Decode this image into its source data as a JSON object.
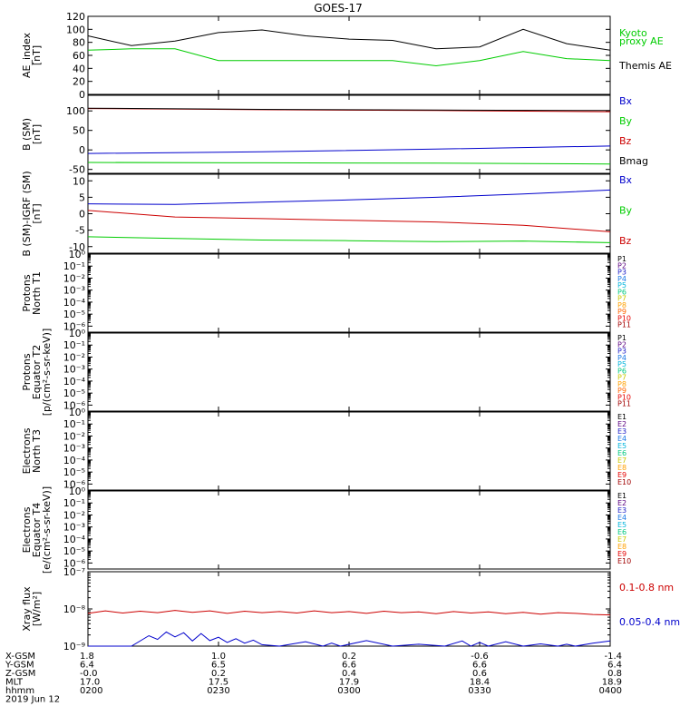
{
  "title": "GOES-17",
  "chart_data": [
    {
      "type": "line",
      "ylabel": "AE_index\n[nT]",
      "ylim": [
        0,
        120
      ],
      "yticks": [
        "0",
        "20",
        "40",
        "60",
        "80",
        "100",
        "120"
      ],
      "right_labels": [
        {
          "text": "Kyoto",
          "color": "#00cc00"
        },
        {
          "text": "proxy AE",
          "color": "#00cc00"
        },
        {
          "text": "Themis AE",
          "color": "#000000"
        }
      ],
      "series": [
        {
          "color": "#000000",
          "x": [
            0,
            10,
            20,
            30,
            40,
            50,
            60,
            70,
            80,
            90,
            100,
            110,
            120
          ],
          "values": [
            90,
            75,
            82,
            95,
            99,
            90,
            85,
            83,
            70,
            73,
            100,
            78,
            68
          ]
        },
        {
          "color": "#00cc00",
          "x": [
            0,
            10,
            20,
            30,
            40,
            50,
            60,
            70,
            80,
            90,
            100,
            110,
            120
          ],
          "values": [
            68,
            70,
            70,
            52,
            52,
            52,
            52,
            52,
            44,
            52,
            66,
            55,
            52
          ]
        }
      ]
    },
    {
      "type": "line",
      "ylabel": "B (SM)\n[nT]",
      "ylim": [
        -60,
        140
      ],
      "yticks": [
        "-50",
        "0",
        "50",
        "100"
      ],
      "right_labels": [
        {
          "text": "Bx",
          "color": "#0000cc"
        },
        {
          "text": "By",
          "color": "#00cc00"
        },
        {
          "text": "Bz",
          "color": "#cc0000"
        },
        {
          "text": "Bmag",
          "color": "#000000"
        }
      ],
      "series": [
        {
          "color": "#0000cc",
          "x": [
            0,
            40,
            80,
            120
          ],
          "values": [
            -9,
            -5,
            2,
            10
          ]
        },
        {
          "color": "#00cc00",
          "x": [
            0,
            40,
            80,
            120
          ],
          "values": [
            -32,
            -33,
            -34,
            -36
          ]
        },
        {
          "color": "#cc0000",
          "x": [
            0,
            40,
            80,
            120
          ],
          "values": [
            106,
            103,
            101,
            98
          ]
        },
        {
          "color": "#000000",
          "x": [
            0,
            40,
            80,
            120
          ],
          "values": [
            107,
            104,
            102,
            101
          ]
        }
      ]
    },
    {
      "type": "line",
      "ylabel": "B (SM)-IGRF (SM)\n[nT]",
      "ylim": [
        -12,
        12
      ],
      "yticks": [
        "-10",
        "-5",
        "0",
        "5",
        "10"
      ],
      "right_labels": [
        {
          "text": "Bx",
          "color": "#0000cc"
        },
        {
          "text": "By",
          "color": "#00cc00"
        },
        {
          "text": "Bz",
          "color": "#cc0000"
        }
      ],
      "series": [
        {
          "color": "#0000cc",
          "x": [
            0,
            20,
            40,
            60,
            80,
            100,
            120
          ],
          "values": [
            3,
            2.8,
            3.5,
            4.2,
            5,
            6,
            7.2
          ]
        },
        {
          "color": "#00cc00",
          "x": [
            0,
            20,
            40,
            60,
            80,
            100,
            120
          ],
          "values": [
            -7,
            -7.5,
            -8,
            -8.2,
            -8.5,
            -8.3,
            -8.8
          ]
        },
        {
          "color": "#cc0000",
          "x": [
            0,
            20,
            40,
            60,
            80,
            100,
            120
          ],
          "values": [
            1,
            -1,
            -1.5,
            -2,
            -2.5,
            -3.5,
            -5.5
          ]
        }
      ]
    },
    {
      "type": "line",
      "ylabel": "Protons\nNorth T1",
      "ylim_log": [
        -6.5,
        0
      ],
      "yticks": [
        "10⁻⁶",
        "10⁻⁵",
        "10⁻⁴",
        "10⁻³",
        "10⁻²",
        "10⁻¹",
        "10⁰"
      ],
      "right_labels": [
        {
          "text": "P1",
          "color": "#000000"
        },
        {
          "text": "P2",
          "color": "#5a0080"
        },
        {
          "text": "P3",
          "color": "#2020c8"
        },
        {
          "text": "P4",
          "color": "#1a78e6"
        },
        {
          "text": "P5",
          "color": "#00b4dc"
        },
        {
          "text": "P6",
          "color": "#00c880"
        },
        {
          "text": "P7",
          "color": "#c8c800"
        },
        {
          "text": "P8",
          "color": "#ffa000"
        },
        {
          "text": "P9",
          "color": "#ff6400"
        },
        {
          "text": "P10",
          "color": "#e60000"
        },
        {
          "text": "P11",
          "color": "#a00000"
        }
      ]
    },
    {
      "type": "line",
      "ylabel": "Protons\nEquator T2\n[p/(cm²-s-sr-keV)]",
      "ylim_log": [
        -6.5,
        0
      ],
      "yticks": [
        "10⁻⁶",
        "10⁻⁵",
        "10⁻⁴",
        "10⁻³",
        "10⁻²",
        "10⁻¹",
        "10⁰"
      ],
      "right_labels": [
        {
          "text": "P1",
          "color": "#000000"
        },
        {
          "text": "P2",
          "color": "#5a0080"
        },
        {
          "text": "P3",
          "color": "#2020c8"
        },
        {
          "text": "P4",
          "color": "#1a78e6"
        },
        {
          "text": "P5",
          "color": "#00b4dc"
        },
        {
          "text": "P6",
          "color": "#00c880"
        },
        {
          "text": "P7",
          "color": "#c8c800"
        },
        {
          "text": "P8",
          "color": "#ffa000"
        },
        {
          "text": "P9",
          "color": "#ff6400"
        },
        {
          "text": "P10",
          "color": "#e60000"
        },
        {
          "text": "P11",
          "color": "#a00000"
        }
      ]
    },
    {
      "type": "line",
      "ylabel": "Electrons\nNorth T3",
      "ylim_log": [
        -6.5,
        0
      ],
      "yticks": [
        "10⁻⁶",
        "10⁻⁵",
        "10⁻⁴",
        "10⁻³",
        "10⁻²",
        "10⁻¹",
        "10⁰"
      ],
      "right_labels": [
        {
          "text": "E1",
          "color": "#000000"
        },
        {
          "text": "E2",
          "color": "#5a0080"
        },
        {
          "text": "E3",
          "color": "#2020c8"
        },
        {
          "text": "E4",
          "color": "#1a78e6"
        },
        {
          "text": "E5",
          "color": "#00b4dc"
        },
        {
          "text": "E6",
          "color": "#00c880"
        },
        {
          "text": "E7",
          "color": "#c8c800"
        },
        {
          "text": "E8",
          "color": "#ffa000"
        },
        {
          "text": "E9",
          "color": "#e60000"
        },
        {
          "text": "E10",
          "color": "#a00000"
        }
      ]
    },
    {
      "type": "line",
      "ylabel": "Electrons\nEquator T4\n[e/(cm²-s-sr-keV)]",
      "ylim_log": [
        -6.5,
        0
      ],
      "yticks": [
        "10⁻⁶",
        "10⁻⁵",
        "10⁻⁴",
        "10⁻³",
        "10⁻²",
        "10⁻¹",
        "10⁰"
      ],
      "right_labels": [
        {
          "text": "E1",
          "color": "#000000"
        },
        {
          "text": "E2",
          "color": "#5a0080"
        },
        {
          "text": "E3",
          "color": "#2020c8"
        },
        {
          "text": "E4",
          "color": "#1a78e6"
        },
        {
          "text": "E5",
          "color": "#00b4dc"
        },
        {
          "text": "E6",
          "color": "#00c880"
        },
        {
          "text": "E7",
          "color": "#c8c800"
        },
        {
          "text": "E8",
          "color": "#ffa000"
        },
        {
          "text": "E9",
          "color": "#e60000"
        },
        {
          "text": "E10",
          "color": "#a00000"
        }
      ]
    },
    {
      "type": "line",
      "ylabel": "Xray flux\n[W/m²]",
      "ylim_log": [
        -9,
        -7
      ],
      "yticks": [
        "10⁻⁹",
        "10⁻⁸",
        "10⁻⁷"
      ],
      "right_labels": [
        {
          "text": "0.1-0.8 nm",
          "color": "#cc0000"
        },
        {
          "text": "0.05-0.4 nm",
          "color": "#0000cc"
        }
      ],
      "series": [
        {
          "color": "#cc0000",
          "x": [
            0,
            4,
            8,
            12,
            16,
            20,
            24,
            28,
            32,
            36,
            40,
            44,
            48,
            52,
            56,
            60,
            64,
            68,
            72,
            76,
            80,
            84,
            88,
            92,
            96,
            100,
            104,
            108,
            112,
            116,
            120
          ],
          "values": [
            -8.12,
            -8.05,
            -8.11,
            -8.06,
            -8.1,
            -8.04,
            -8.09,
            -8.05,
            -8.12,
            -8.06,
            -8.1,
            -8.07,
            -8.11,
            -8.05,
            -8.1,
            -8.07,
            -8.12,
            -8.06,
            -8.1,
            -8.08,
            -8.13,
            -8.07,
            -8.11,
            -8.08,
            -8.13,
            -8.09,
            -8.14,
            -8.1,
            -8.12,
            -8.15,
            -8.16
          ]
        },
        {
          "color": "#0000cc",
          "x": [
            0,
            6,
            10,
            14,
            16,
            18,
            20,
            22,
            24,
            26,
            28,
            30,
            32,
            34,
            36,
            38,
            40,
            44,
            50,
            54,
            56,
            58,
            64,
            70,
            76,
            82,
            86,
            88,
            90,
            92,
            96,
            100,
            104,
            108,
            110,
            112,
            116,
            120
          ],
          "values": [
            -9,
            -9,
            -9,
            -8.72,
            -8.82,
            -8.62,
            -8.75,
            -8.64,
            -8.86,
            -8.66,
            -8.85,
            -8.76,
            -8.9,
            -8.8,
            -8.92,
            -8.84,
            -8.96,
            -9,
            -8.88,
            -9,
            -8.92,
            -9,
            -8.85,
            -9,
            -8.95,
            -9,
            -8.86,
            -9,
            -8.9,
            -9,
            -8.88,
            -9,
            -8.94,
            -9,
            -8.95,
            -9,
            -8.92,
            -8.86
          ]
        }
      ]
    }
  ],
  "xaxis": {
    "xlim": [
      0,
      120
    ],
    "row_labels": [
      "X-GSM",
      "Y-GSM",
      "Z-GSM",
      "MLT",
      "hhmm",
      "2019 Jun 12"
    ],
    "ticks": [
      {
        "x": 0,
        "values": [
          "1.8",
          "6.4",
          "-0.0",
          "17.0",
          "0200"
        ]
      },
      {
        "x": 30,
        "values": [
          "1.0",
          "6.5",
          "0.2",
          "17.5",
          "0230"
        ]
      },
      {
        "x": 60,
        "values": [
          "0.2",
          "6.6",
          "0.4",
          "17.9",
          "0300"
        ]
      },
      {
        "x": 90,
        "values": [
          "-0.6",
          "6.6",
          "0.6",
          "18.4",
          "0330"
        ]
      },
      {
        "x": 120,
        "values": [
          "-1.4",
          "6.4",
          "0.8",
          "18.9",
          "0400"
        ]
      }
    ]
  }
}
